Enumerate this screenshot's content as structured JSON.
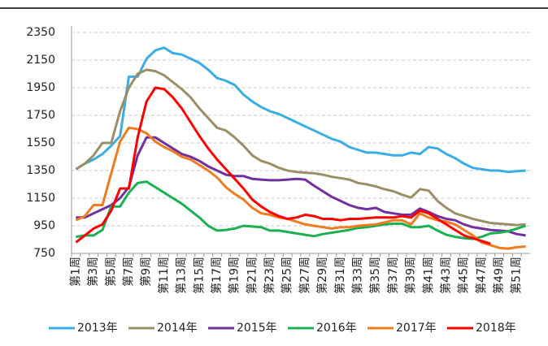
{
  "chart_data": {
    "type": "line",
    "categories": [
      "第1周",
      null,
      "第3周",
      null,
      "第5周",
      null,
      "第7周",
      null,
      "第9周",
      null,
      "第11周",
      null,
      "第13周",
      null,
      "第15周",
      null,
      "第17周",
      null,
      "第19周",
      null,
      "第21周",
      null,
      "第23周",
      null,
      "第25周",
      null,
      "第27周",
      null,
      "第29周",
      null,
      "第31周",
      null,
      "第33周",
      null,
      "第35周",
      null,
      "第37周",
      null,
      "第39周",
      null,
      "第41周",
      null,
      "第43周",
      null,
      "第45周",
      null,
      "第47周",
      null,
      "第49周",
      null,
      "第51周",
      null
    ],
    "ylim": [
      750,
      2350
    ],
    "yticks": [
      750,
      950,
      1150,
      1350,
      1550,
      1750,
      1950,
      2150,
      2350
    ],
    "grid": true,
    "legend": "bottom",
    "series": [
      {
        "name": "2013年",
        "color": "#3aaee2",
        "values": [
          1360,
          1400,
          1430,
          1470,
          1530,
          1600,
          2030,
          2030,
          2160,
          2220,
          2240,
          2200,
          2190,
          2160,
          2130,
          2080,
          2020,
          2000,
          1970,
          1900,
          1850,
          1810,
          1780,
          1760,
          1730,
          1700,
          1670,
          1640,
          1610,
          1580,
          1560,
          1520,
          1500,
          1480,
          1480,
          1470,
          1460,
          1460,
          1480,
          1470,
          1520,
          1510,
          1470,
          1440,
          1400,
          1370,
          1360,
          1350,
          1350,
          1340,
          1345,
          1350
        ]
      },
      {
        "name": "2014年",
        "color": "#9c8f66",
        "values": [
          1360,
          1400,
          1460,
          1550,
          1550,
          1780,
          1950,
          2050,
          2080,
          2070,
          2040,
          1990,
          1940,
          1880,
          1800,
          1730,
          1660,
          1640,
          1590,
          1530,
          1460,
          1420,
          1400,
          1370,
          1350,
          1340,
          1335,
          1330,
          1320,
          1305,
          1295,
          1285,
          1260,
          1250,
          1235,
          1215,
          1200,
          1175,
          1155,
          1215,
          1205,
          1130,
          1080,
          1040,
          1020,
          1000,
          985,
          970,
          965,
          960,
          955,
          960
        ]
      },
      {
        "name": "2015年",
        "color": "#7030a0",
        "values": [
          1010,
          1010,
          1040,
          1070,
          1100,
          1150,
          1230,
          1460,
          1590,
          1590,
          1550,
          1510,
          1470,
          1450,
          1420,
          1380,
          1350,
          1320,
          1310,
          1310,
          1290,
          1285,
          1280,
          1280,
          1285,
          1290,
          1285,
          1240,
          1200,
          1160,
          1130,
          1100,
          1080,
          1070,
          1080,
          1050,
          1040,
          1030,
          1030,
          1075,
          1050,
          1020,
          1000,
          990,
          960,
          940,
          930,
          920,
          915,
          910,
          890,
          880
        ]
      },
      {
        "name": "2016年",
        "color": "#1bb052",
        "values": [
          870,
          880,
          880,
          920,
          1090,
          1090,
          1190,
          1260,
          1270,
          1230,
          1190,
          1150,
          1110,
          1060,
          1010,
          950,
          915,
          920,
          930,
          950,
          945,
          940,
          915,
          915,
          905,
          895,
          885,
          875,
          890,
          900,
          910,
          920,
          935,
          940,
          950,
          960,
          965,
          965,
          940,
          940,
          950,
          915,
          885,
          870,
          860,
          855,
          870,
          895,
          900,
          910,
          930,
          950
        ]
      },
      {
        "name": "2017年",
        "color": "#f07c1e",
        "values": [
          990,
          1020,
          1100,
          1100,
          1330,
          1560,
          1660,
          1650,
          1620,
          1560,
          1520,
          1490,
          1450,
          1430,
          1390,
          1350,
          1300,
          1230,
          1180,
          1140,
          1080,
          1040,
          1030,
          1010,
          1000,
          980,
          960,
          950,
          940,
          930,
          940,
          940,
          950,
          955,
          960,
          975,
          990,
          990,
          960,
          1040,
          1010,
          990,
          980,
          960,
          920,
          880,
          830,
          810,
          790,
          785,
          795,
          800
        ]
      },
      {
        "name": "2018年",
        "color": "#ff0000",
        "values": [
          830,
          880,
          930,
          960,
          1060,
          1220,
          1220,
          1590,
          1850,
          1950,
          1940,
          1880,
          1800,
          1700,
          1600,
          1510,
          1430,
          1360,
          1290,
          1220,
          1140,
          1090,
          1050,
          1020,
          1000,
          1010,
          1030,
          1020,
          1000,
          1000,
          990,
          1000,
          1000,
          1005,
          1010,
          1010,
          1010,
          1020,
          1010,
          1060,
          1040,
          1000,
          960,
          920,
          880,
          860,
          840,
          820,
          null,
          null,
          null,
          null
        ]
      }
    ]
  }
}
